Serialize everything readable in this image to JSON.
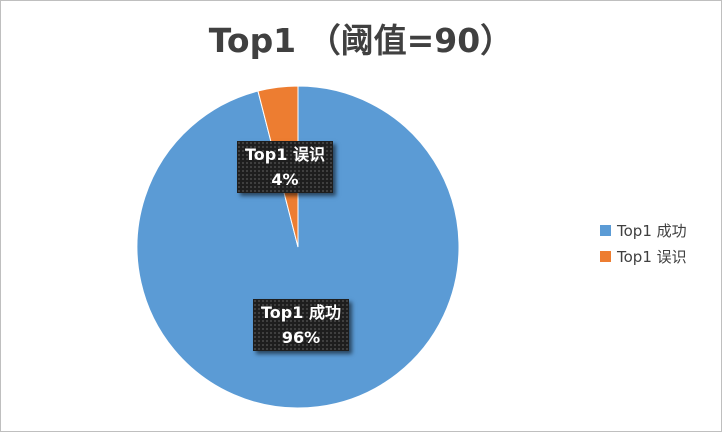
{
  "chart_data": {
    "type": "pie",
    "title": "Top1 （阈值=90）",
    "categories": [
      "Top1 成功",
      "Top1 误识"
    ],
    "values": [
      96,
      4
    ],
    "percent_labels": [
      "96%",
      "4%"
    ],
    "colors": [
      "#5b9bd5",
      "#ed7d31"
    ],
    "legend_position": "right",
    "start_angle": "12 o'clock, clockwise"
  }
}
